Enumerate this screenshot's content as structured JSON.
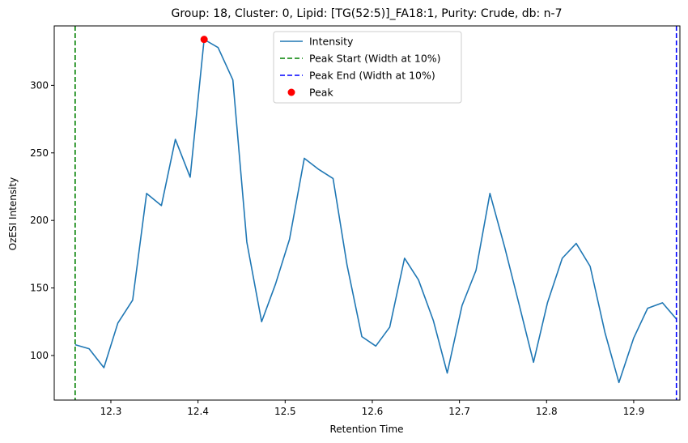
{
  "chart_data": {
    "type": "line",
    "title": "Group: 18, Cluster: 0, Lipid: [TG(52:5)]_FA18:1, Purity: Crude, db: n-7",
    "xlabel": "Retention Time",
    "ylabel": "OzESI Intensity",
    "xlim": [
      12.235,
      12.953
    ],
    "ylim": [
      67,
      344
    ],
    "xticks": [
      12.3,
      12.4,
      12.5,
      12.6,
      12.7,
      12.8,
      12.9
    ],
    "xtick_labels": [
      "12.3",
      "12.4",
      "12.5",
      "12.6",
      "12.7",
      "12.8",
      "12.9"
    ],
    "yticks": [
      100,
      150,
      200,
      250,
      300
    ],
    "ytick_labels": [
      "100",
      "150",
      "200",
      "250",
      "300"
    ],
    "grid": false,
    "legend_position": "top-center",
    "series": [
      {
        "name": "Intensity",
        "color": "#1f77b4",
        "x": [
          12.259,
          12.275,
          12.292,
          12.308,
          12.325,
          12.341,
          12.358,
          12.374,
          12.391,
          12.407,
          12.423,
          12.44,
          12.456,
          12.473,
          12.489,
          12.505,
          12.522,
          12.538,
          12.555,
          12.571,
          12.588,
          12.604,
          12.62,
          12.637,
          12.653,
          12.67,
          12.686,
          12.703,
          12.719,
          12.735,
          12.752,
          12.768,
          12.785,
          12.801,
          12.818,
          12.834,
          12.85,
          12.867,
          12.883,
          12.9,
          12.916,
          12.933,
          12.949
        ],
        "y": [
          108,
          105,
          91,
          124,
          141,
          220,
          211,
          260,
          232,
          334,
          328,
          304,
          184,
          125,
          153,
          186,
          246,
          238,
          231,
          167,
          114,
          107,
          121,
          172,
          156,
          126,
          87,
          137,
          163,
          220,
          180,
          139,
          95,
          139,
          172,
          183,
          166,
          117,
          80,
          113,
          135,
          139,
          127
        ]
      }
    ],
    "vlines": [
      {
        "name": "Peak Start (Width at 10%)",
        "x": 12.259,
        "color": "#008000",
        "style": "dashed"
      },
      {
        "name": "Peak End (Width at 10%)",
        "x": 12.949,
        "color": "#0000ff",
        "style": "dashed"
      }
    ],
    "peak": {
      "name": "Peak",
      "x": 12.407,
      "y": 334,
      "color": "#ff0000"
    },
    "legend": [
      "Intensity",
      "Peak Start (Width at 10%)",
      "Peak End (Width at 10%)",
      "Peak"
    ]
  }
}
